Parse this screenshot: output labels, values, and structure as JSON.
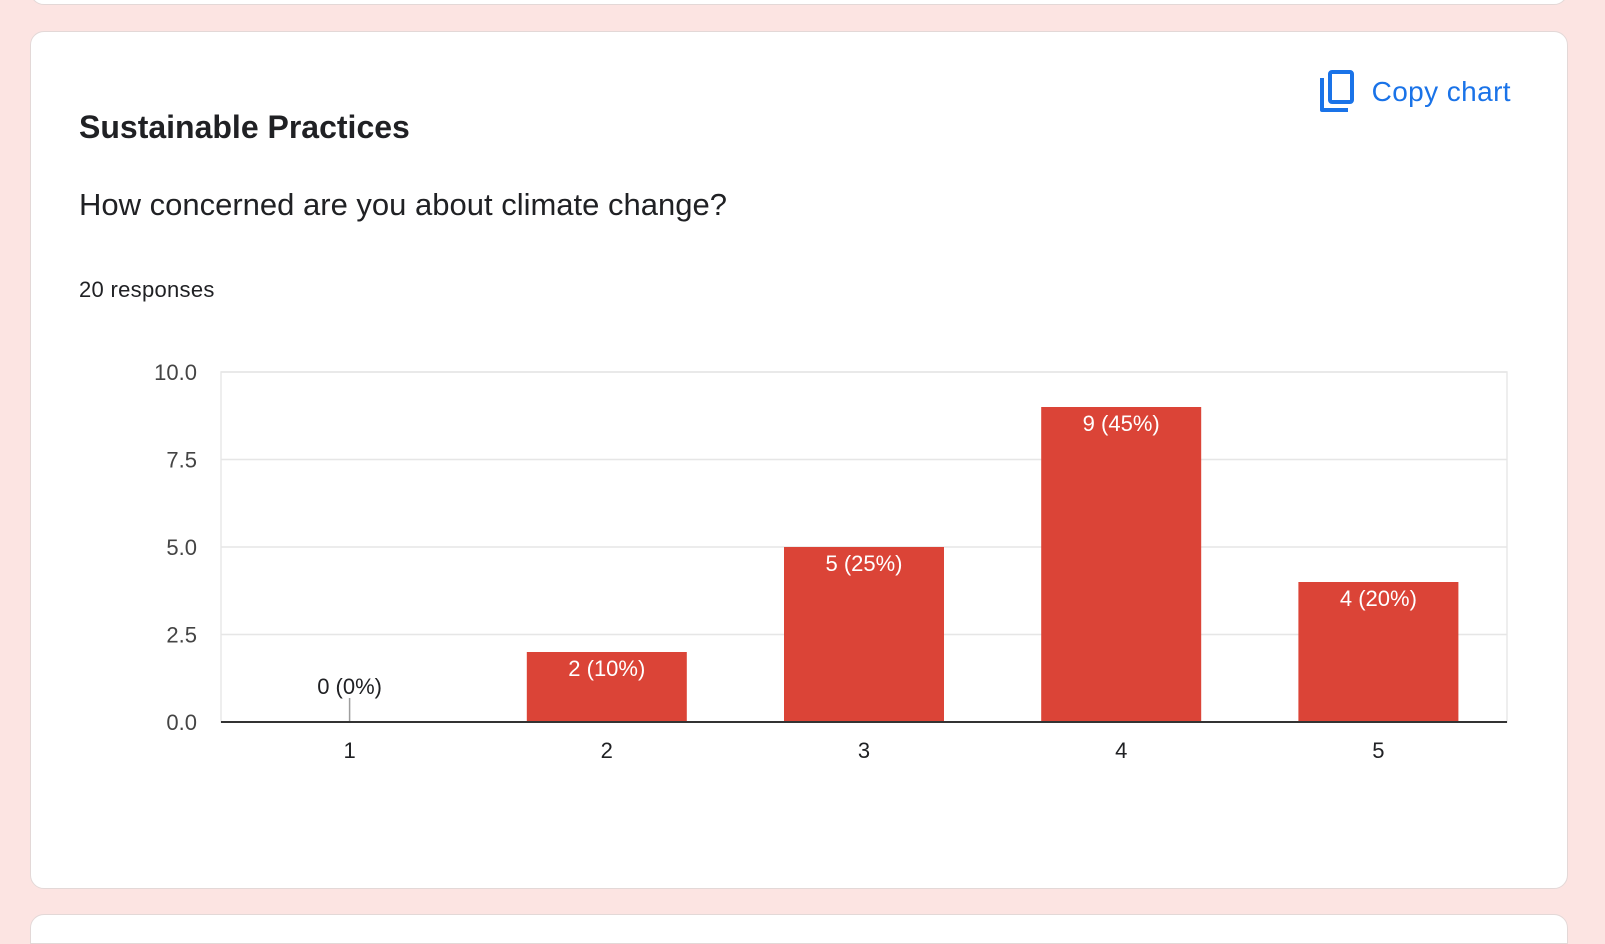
{
  "card": {
    "section_title": "Sustainable Practices",
    "question": "How concerned are you about climate change?",
    "responses": "20 responses",
    "copy_chart_label": "Copy chart",
    "copy_icon": "copy-icon"
  },
  "colors": {
    "background": "#fce4e2",
    "bar": "#db4437",
    "accent": "#1a73e8"
  },
  "chart_data": {
    "type": "bar",
    "categories": [
      "1",
      "2",
      "3",
      "4",
      "5"
    ],
    "values": [
      0,
      2,
      5,
      9,
      4
    ],
    "data_labels": [
      "0 (0%)",
      "2 (10%)",
      "5 (25%)",
      "9 (45%)",
      "4 (20%)"
    ],
    "ylim": [
      0,
      10
    ],
    "yticks": [
      "0.0",
      "2.5",
      "5.0",
      "7.5",
      "10.0"
    ],
    "grid": true,
    "legend": "none",
    "title": "",
    "xlabel": "",
    "ylabel": ""
  }
}
